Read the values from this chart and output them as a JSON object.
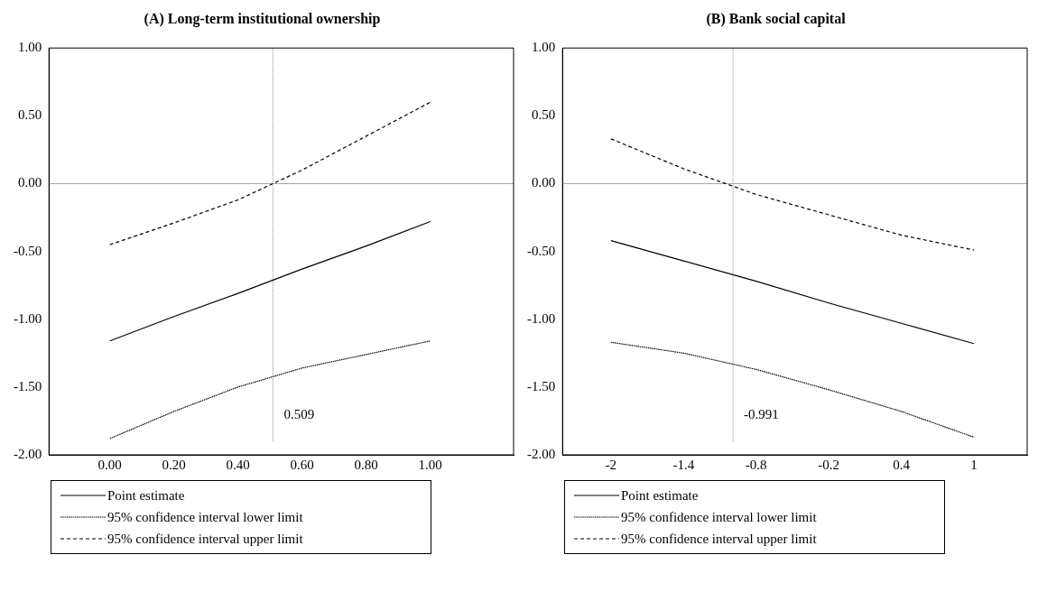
{
  "chart_data": [
    {
      "type": "line",
      "title": "(A) Long-term institutional ownership",
      "x": [
        0,
        0.2,
        0.4,
        0.6,
        0.8,
        1
      ],
      "series": [
        {
          "name": "Point estimate",
          "color": "#000000",
          "line_style": "solid",
          "values": [
            -1.16,
            -0.98,
            -0.81,
            -0.63,
            -0.46,
            -0.28
          ]
        },
        {
          "name": "95% confidence interval lower limit",
          "color": "#000000",
          "line_style": "dotted",
          "values": [
            -1.88,
            -1.68,
            -1.5,
            -1.36,
            -1.26,
            -1.16
          ]
        },
        {
          "name": "95% confidence interval upper limit",
          "color": "#000000",
          "line_style": "dashed",
          "values": [
            -0.45,
            -0.29,
            -0.12,
            0.1,
            0.35,
            0.6
          ]
        }
      ],
      "xlim": [
        -0.19,
        1.26
      ],
      "xticks": [
        {
          "value": 0,
          "label": "0.00"
        },
        {
          "value": 0.2,
          "label": "0.20"
        },
        {
          "value": 0.4,
          "label": "0.40"
        },
        {
          "value": 0.6,
          "label": "0.60"
        },
        {
          "value": 0.8,
          "label": "0.80"
        },
        {
          "value": 1,
          "label": "1.00"
        }
      ],
      "ylim": [
        -2,
        1
      ],
      "yticks": [
        {
          "value": -2,
          "label": "-2.00"
        },
        {
          "value": -1.5,
          "label": "-1.50"
        },
        {
          "value": -1,
          "label": "-1.00"
        },
        {
          "value": -0.5,
          "label": "-0.50"
        },
        {
          "value": 0,
          "label": "0.00"
        },
        {
          "value": 0.5,
          "label": "0.50"
        },
        {
          "value": 1,
          "label": "1.00"
        }
      ],
      "ref_lines": [
        {
          "axis": "y",
          "value": 0,
          "color": "#a6a6a6",
          "line_style": "solid"
        },
        {
          "axis": "x",
          "value": 0.509,
          "label": "0.509",
          "color": "#a6a6a6",
          "line_style": "dotted"
        }
      ],
      "legend": "bottom",
      "grid": false
    },
    {
      "type": "line",
      "title": "(B) Bank social capital",
      "x": [
        -2,
        -1.4,
        -0.8,
        -0.2,
        0.4,
        1
      ],
      "series": [
        {
          "name": "Point estimate",
          "color": "#000000",
          "line_style": "solid",
          "values": [
            -0.42,
            -0.57,
            -0.72,
            -0.88,
            -1.03,
            -1.18
          ]
        },
        {
          "name": "95% confidence interval lower limit",
          "color": "#000000",
          "line_style": "dotted",
          "values": [
            -1.17,
            -1.25,
            -1.37,
            -1.52,
            -1.68,
            -1.87
          ]
        },
        {
          "name": "95% confidence interval upper limit",
          "color": "#000000",
          "line_style": "dashed",
          "values": [
            0.33,
            0.11,
            -0.08,
            -0.23,
            -0.38,
            -0.49
          ]
        }
      ],
      "xlim": [
        -2.4,
        1.44
      ],
      "xticks": [
        -2,
        -1.4,
        -0.8,
        -0.2,
        0.4,
        1
      ],
      "ylim": [
        -2,
        1
      ],
      "yticks": [
        {
          "value": -2,
          "label": "-2.00"
        },
        {
          "value": -1.5,
          "label": "-1.50"
        },
        {
          "value": -1,
          "label": "-1.00"
        },
        {
          "value": -0.5,
          "label": "-0.50"
        },
        {
          "value": 0,
          "label": "0.00"
        },
        {
          "value": 0.5,
          "label": "0.50"
        },
        {
          "value": 1,
          "label": "1.00"
        }
      ],
      "ref_lines": [
        {
          "axis": "y",
          "value": 0,
          "color": "#a6a6a6",
          "line_style": "solid"
        },
        {
          "axis": "x",
          "value": -0.991,
          "label": "-0.991",
          "color": "#a6a6a6",
          "line_style": "dotted"
        }
      ],
      "legend": "bottom",
      "grid": false
    }
  ]
}
